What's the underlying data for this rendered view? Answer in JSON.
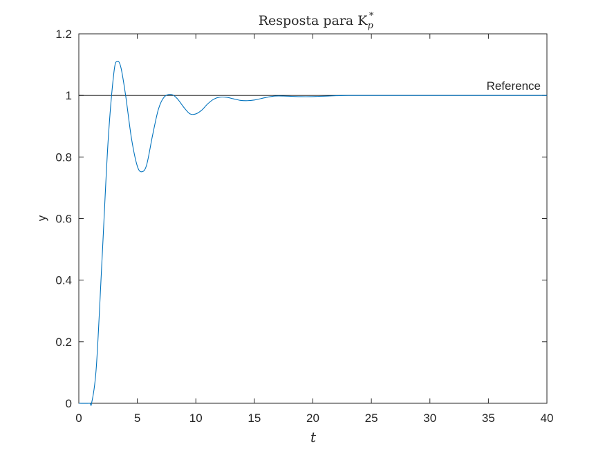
{
  "chart_data": {
    "type": "line",
    "title": "Resposta para K",
    "title_sub": "p",
    "title_sup": "*",
    "xlabel": "t",
    "ylabel": "y",
    "xlim": [
      0,
      40
    ],
    "ylim": [
      0,
      1.2
    ],
    "xticks": [
      0,
      5,
      10,
      15,
      20,
      25,
      30,
      35,
      40
    ],
    "xtick_labels": [
      "0",
      "5",
      "10",
      "15",
      "20",
      "25",
      "30",
      "35",
      "40"
    ],
    "yticks": [
      0,
      0.2,
      0.4,
      0.6,
      0.8,
      1,
      1.2
    ],
    "ytick_labels": [
      "0",
      "0.2",
      "0.4",
      "0.6",
      "0.8",
      "1",
      "1.2"
    ],
    "grid": false,
    "reference": {
      "y": 1,
      "label": "Reference",
      "color": "#000000"
    },
    "series": [
      {
        "color": "#0072BD",
        "x": [
          0,
          0.9,
          1.1,
          1.5,
          2.0,
          2.5,
          3.0,
          3.3,
          3.6,
          4.0,
          4.5,
          5.0,
          5.4,
          5.8,
          6.3,
          6.8,
          7.3,
          7.9,
          8.4,
          9.0,
          9.5,
          10.0,
          10.5,
          11.0,
          11.5,
          12.0,
          12.6,
          13.2,
          13.8,
          14.4,
          15.0,
          15.6,
          16.2,
          16.8,
          17.5,
          18.2,
          19.0,
          19.8,
          20.5,
          21.3,
          22.0,
          23.0,
          24.0,
          25.0,
          27.0,
          30.0,
          33.0,
          36.0,
          40.0
        ],
        "y": [
          0,
          0,
          0.002,
          0.12,
          0.48,
          0.85,
          1.075,
          1.11,
          1.09,
          1.0,
          0.86,
          0.77,
          0.752,
          0.775,
          0.87,
          0.955,
          0.995,
          1.003,
          0.99,
          0.96,
          0.94,
          0.94,
          0.952,
          0.972,
          0.987,
          0.994,
          0.994,
          0.989,
          0.984,
          0.983,
          0.985,
          0.99,
          0.995,
          0.998,
          0.998,
          0.997,
          0.996,
          0.996,
          0.997,
          0.998,
          0.999,
          1.0,
          1.0,
          1.0,
          1.0,
          1.0,
          1.0,
          1.0,
          1.0
        ]
      }
    ]
  }
}
